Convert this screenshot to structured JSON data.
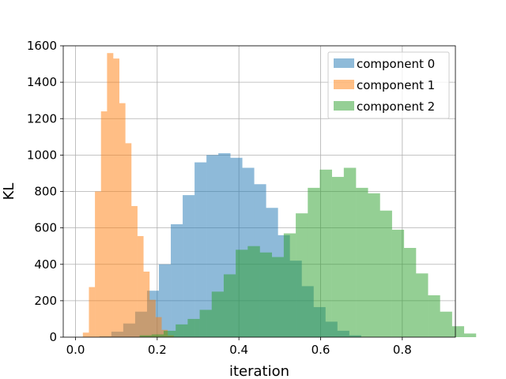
{
  "chart_data": {
    "type": "bar",
    "subtype": "histogram",
    "title": "",
    "xlabel": "iteration",
    "ylabel": "KL",
    "xlim": [
      -0.03,
      0.93
    ],
    "ylim": [
      0,
      1600
    ],
    "x_ticks": [
      0.0,
      0.2,
      0.4,
      0.6,
      0.8
    ],
    "x_tick_labels": [
      "0.0",
      "0.2",
      "0.4",
      "0.6",
      "0.8"
    ],
    "y_ticks": [
      0,
      200,
      400,
      600,
      800,
      1000,
      1200,
      1400,
      1600
    ],
    "y_tick_labels": [
      "0",
      "200",
      "400",
      "600",
      "800",
      "1000",
      "1200",
      "1400",
      "1600"
    ],
    "grid": true,
    "legend_position": "top-right",
    "bar_opacity": 0.5,
    "series": [
      {
        "name": "component 0",
        "color": "#1f77b4",
        "bin_start": 0.0587,
        "bin_width": 0.0291,
        "values": [
          5,
          30,
          75,
          140,
          255,
          400,
          620,
          780,
          960,
          1000,
          1010,
          985,
          930,
          840,
          710,
          560,
          420,
          280,
          165,
          85,
          35,
          10
        ]
      },
      {
        "name": "component 1",
        "color": "#ff7f0e",
        "bin_start": 0.018,
        "bin_width": 0.0148,
        "values": [
          25,
          275,
          800,
          1240,
          1560,
          1530,
          1285,
          1065,
          720,
          555,
          360,
          205,
          110,
          40,
          10
        ]
      },
      {
        "name": "component 2",
        "color": "#2ca02c",
        "bin_start": 0.157,
        "bin_width": 0.0294,
        "values": [
          10,
          15,
          35,
          70,
          100,
          150,
          250,
          345,
          480,
          500,
          465,
          440,
          570,
          680,
          820,
          920,
          880,
          930,
          820,
          790,
          695,
          590,
          490,
          350,
          230,
          140,
          60,
          20
        ]
      }
    ]
  }
}
